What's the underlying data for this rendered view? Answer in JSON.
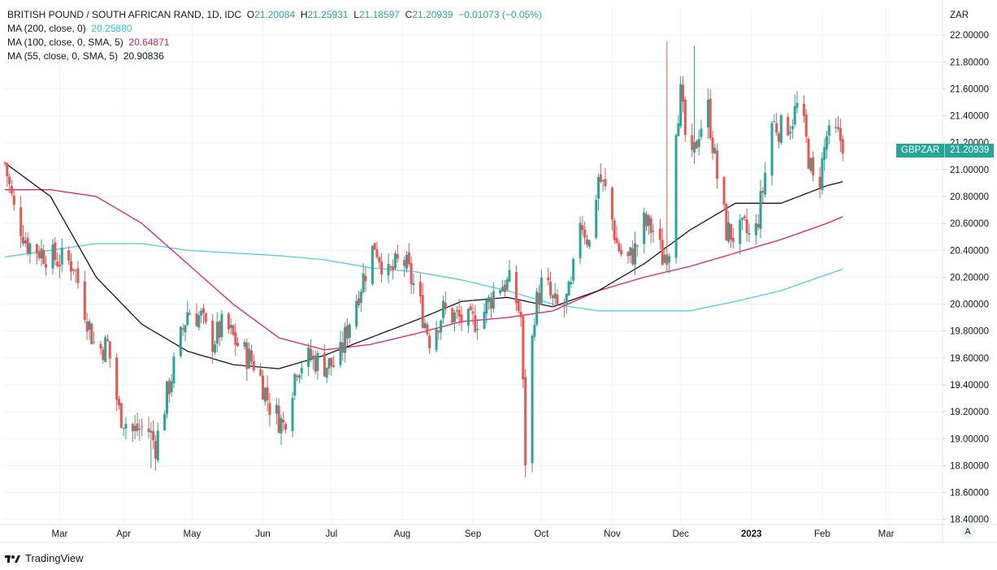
{
  "legend": {
    "symbol": "BRITISH POUND / SOUTH AFRICAN RAND, 1D, IDC",
    "o_label": "O",
    "o_value": "21.20084",
    "h_label": "H",
    "h_value": "21.25931",
    "l_label": "L",
    "l_value": "21.18597",
    "c_label": "C",
    "c_value": "21.20939",
    "change": "−0.01073 (−0.05%)",
    "ma200_label": "MA (200, close, 0)",
    "ma200_value": "20.25880",
    "ma100_label": "MA (100, close, 0, SMA, 5)",
    "ma100_value": "20.64871",
    "ma55_label": "MA (55, close, 0, SMA, 5)",
    "ma55_value": "20.90836"
  },
  "price_tag": {
    "symbol": "GBPZAR",
    "value": "21.20939"
  },
  "currency": "ZAR",
  "footer": {
    "brand": "TradingView"
  },
  "auto_button": "A",
  "colors": {
    "up": "#26a69a",
    "down": "#ef5350",
    "ma200": "#4dd0e1",
    "ma100": "#e91e63",
    "ma55": "#131722"
  },
  "chart_data": {
    "type": "candlestick",
    "title": "BRITISH POUND / SOUTH AFRICAN RAND, 1D, IDC",
    "y_unit": "ZAR",
    "ylim": [
      18.38,
      22.2
    ],
    "y_ticks": [
      "22.00000",
      "21.80000",
      "21.60000",
      "21.40000",
      "21.20000",
      "21.00000",
      "20.80000",
      "20.60000",
      "20.40000",
      "20.20000",
      "20.00000",
      "19.80000",
      "19.60000",
      "19.40000",
      "19.20000",
      "19.00000",
      "18.80000",
      "18.60000",
      "18.40000"
    ],
    "x_ticks": [
      "Mar",
      "Apr",
      "May",
      "Jun",
      "Jul",
      "Aug",
      "Sep",
      "Oct",
      "Nov",
      "Dec",
      "2023",
      "Feb",
      "Mar"
    ],
    "x_tick_days": [
      24,
      52,
      82,
      113,
      143,
      174,
      205,
      235,
      266,
      296,
      327,
      358,
      386
    ],
    "day_range": [
      0,
      410
    ],
    "series_close_anchors": {
      "days": [
        0,
        4,
        10,
        20,
        30,
        36,
        40,
        45,
        50,
        56,
        62,
        66,
        72,
        80,
        86,
        90,
        96,
        104,
        110,
        116,
        122,
        128,
        134,
        140,
        146,
        152,
        158,
        162,
        168,
        174,
        180,
        186,
        192,
        198,
        204,
        210,
        216,
        222,
        226,
        228,
        230,
        232,
        236,
        240,
        244,
        248,
        252,
        256,
        260,
        264,
        268,
        272,
        276,
        280,
        284,
        288,
        292,
        294,
        296,
        300,
        304,
        308,
        312,
        316,
        320,
        324,
        328,
        332,
        336,
        340,
        344,
        348,
        350,
        354,
        357,
        360,
        362,
        364,
        367
      ],
      "closes": [
        21.05,
        20.7,
        20.45,
        20.35,
        20.3,
        19.9,
        19.65,
        19.7,
        19.2,
        19.05,
        19.1,
        18.95,
        19.4,
        19.95,
        19.9,
        19.7,
        19.85,
        19.65,
        19.55,
        19.25,
        19.1,
        19.55,
        19.6,
        19.55,
        19.55,
        19.95,
        20.25,
        20.45,
        20.2,
        20.35,
        20.1,
        19.75,
        19.95,
        19.9,
        19.85,
        19.95,
        20.15,
        20.15,
        19.9,
        18.85,
        19.5,
        19.95,
        20.2,
        20.0,
        19.95,
        20.1,
        20.65,
        20.45,
        20.95,
        20.8,
        20.45,
        20.3,
        20.4,
        20.6,
        20.55,
        20.35,
        20.45,
        21.35,
        21.55,
        20.95,
        21.3,
        21.45,
        20.95,
        20.55,
        20.5,
        20.55,
        20.45,
        20.85,
        21.35,
        21.3,
        21.35,
        21.5,
        21.3,
        20.9,
        20.95,
        21.25,
        21.2,
        21.25,
        21.21
      ]
    },
    "ma_anchors": {
      "days": [
        0,
        20,
        40,
        60,
        80,
        100,
        120,
        140,
        160,
        180,
        200,
        220,
        240,
        260,
        280,
        300,
        320,
        340,
        360,
        367
      ],
      "ma200": [
        20.35,
        20.4,
        20.45,
        20.45,
        20.4,
        20.38,
        20.36,
        20.33,
        20.27,
        20.24,
        20.18,
        20.1,
        20.0,
        19.95,
        19.95,
        19.95,
        20.02,
        20.1,
        20.22,
        20.26
      ],
      "ma100": [
        20.85,
        20.85,
        20.8,
        20.6,
        20.3,
        20.0,
        19.75,
        19.66,
        19.7,
        19.78,
        19.87,
        19.9,
        19.95,
        20.1,
        20.2,
        20.28,
        20.38,
        20.48,
        20.6,
        20.65
      ],
      "ma55": [
        21.05,
        20.8,
        20.2,
        19.85,
        19.65,
        19.55,
        19.52,
        19.62,
        19.75,
        19.88,
        20.02,
        20.05,
        19.98,
        20.1,
        20.3,
        20.55,
        20.75,
        20.75,
        20.88,
        20.91
      ]
    },
    "spikes": [
      {
        "day": 229,
        "low": 18.7
      },
      {
        "day": 290,
        "high": 21.95
      },
      {
        "day": 302,
        "high": 21.92
      },
      {
        "day": 64,
        "low": 18.78
      },
      {
        "day": 124,
        "low": 19.0
      }
    ]
  }
}
